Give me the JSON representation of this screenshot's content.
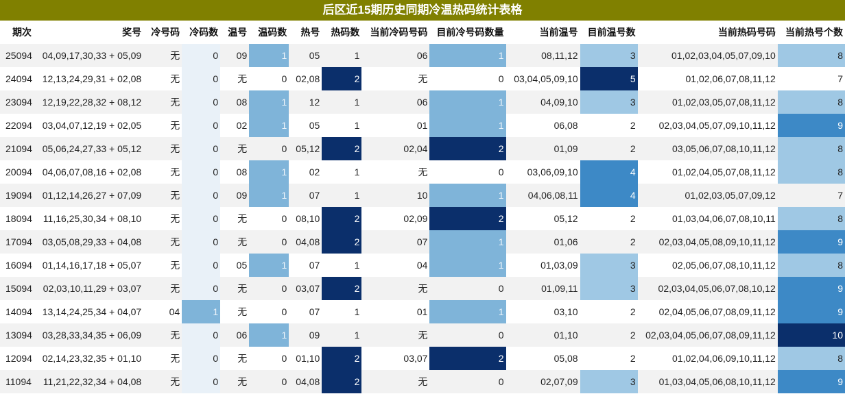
{
  "title": "后区近15期历史同期冷温热码统计表格",
  "headers": [
    "期次",
    "奖号",
    "冷号码",
    "冷码数",
    "温号",
    "温码数",
    "热号",
    "热码数",
    "当前冷码号码",
    "目前冷号码数量",
    "当前温号",
    "目前温号数",
    "当前热码号码",
    "当前热号个数"
  ],
  "rows": [
    {
      "issue": "25094",
      "draw": "04,09,17,30,33 + 05,09",
      "cold": "无",
      "cold_n": "0",
      "warm": "09",
      "warm_n": "1",
      "hot": "05",
      "hot_n": "1",
      "cur_cold": "06",
      "cur_cold_n": "1",
      "cur_warm": "08,11,12",
      "cur_warm_n": "3",
      "cur_hot": "01,02,03,04,05,07,09,10",
      "cur_hot_n": "8"
    },
    {
      "issue": "24094",
      "draw": "12,13,24,29,31 + 02,08",
      "cold": "无",
      "cold_n": "0",
      "warm": "无",
      "warm_n": "0",
      "hot": "02,08",
      "hot_n": "2",
      "cur_cold": "无",
      "cur_cold_n": "0",
      "cur_warm": "03,04,05,09,10",
      "cur_warm_n": "5",
      "cur_hot": "01,02,06,07,08,11,12",
      "cur_hot_n": "7"
    },
    {
      "issue": "23094",
      "draw": "12,19,22,28,32 + 08,12",
      "cold": "无",
      "cold_n": "0",
      "warm": "08",
      "warm_n": "1",
      "hot": "12",
      "hot_n": "1",
      "cur_cold": "06",
      "cur_cold_n": "1",
      "cur_warm": "04,09,10",
      "cur_warm_n": "3",
      "cur_hot": "01,02,03,05,07,08,11,12",
      "cur_hot_n": "8"
    },
    {
      "issue": "22094",
      "draw": "03,04,07,12,19 + 02,05",
      "cold": "无",
      "cold_n": "0",
      "warm": "02",
      "warm_n": "1",
      "hot": "05",
      "hot_n": "1",
      "cur_cold": "01",
      "cur_cold_n": "1",
      "cur_warm": "06,08",
      "cur_warm_n": "2",
      "cur_hot": "02,03,04,05,07,09,10,11,12",
      "cur_hot_n": "9"
    },
    {
      "issue": "21094",
      "draw": "05,06,24,27,33 + 05,12",
      "cold": "无",
      "cold_n": "0",
      "warm": "无",
      "warm_n": "0",
      "hot": "05,12",
      "hot_n": "2",
      "cur_cold": "02,04",
      "cur_cold_n": "2",
      "cur_warm": "01,09",
      "cur_warm_n": "2",
      "cur_hot": "03,05,06,07,08,10,11,12",
      "cur_hot_n": "8"
    },
    {
      "issue": "20094",
      "draw": "04,06,07,08,16 + 02,08",
      "cold": "无",
      "cold_n": "0",
      "warm": "08",
      "warm_n": "1",
      "hot": "02",
      "hot_n": "1",
      "cur_cold": "无",
      "cur_cold_n": "0",
      "cur_warm": "03,06,09,10",
      "cur_warm_n": "4",
      "cur_hot": "01,02,04,05,07,08,11,12",
      "cur_hot_n": "8"
    },
    {
      "issue": "19094",
      "draw": "01,12,14,26,27 + 07,09",
      "cold": "无",
      "cold_n": "0",
      "warm": "09",
      "warm_n": "1",
      "hot": "07",
      "hot_n": "1",
      "cur_cold": "10",
      "cur_cold_n": "1",
      "cur_warm": "04,06,08,11",
      "cur_warm_n": "4",
      "cur_hot": "01,02,03,05,07,09,12",
      "cur_hot_n": "7"
    },
    {
      "issue": "18094",
      "draw": "11,16,25,30,34 + 08,10",
      "cold": "无",
      "cold_n": "0",
      "warm": "无",
      "warm_n": "0",
      "hot": "08,10",
      "hot_n": "2",
      "cur_cold": "02,09",
      "cur_cold_n": "2",
      "cur_warm": "05,12",
      "cur_warm_n": "2",
      "cur_hot": "01,03,04,06,07,08,10,11",
      "cur_hot_n": "8"
    },
    {
      "issue": "17094",
      "draw": "03,05,08,29,33 + 04,08",
      "cold": "无",
      "cold_n": "0",
      "warm": "无",
      "warm_n": "0",
      "hot": "04,08",
      "hot_n": "2",
      "cur_cold": "07",
      "cur_cold_n": "1",
      "cur_warm": "01,06",
      "cur_warm_n": "2",
      "cur_hot": "02,03,04,05,08,09,10,11,12",
      "cur_hot_n": "9"
    },
    {
      "issue": "16094",
      "draw": "01,14,16,17,18 + 05,07",
      "cold": "无",
      "cold_n": "0",
      "warm": "05",
      "warm_n": "1",
      "hot": "07",
      "hot_n": "1",
      "cur_cold": "04",
      "cur_cold_n": "1",
      "cur_warm": "01,03,09",
      "cur_warm_n": "3",
      "cur_hot": "02,05,06,07,08,10,11,12",
      "cur_hot_n": "8"
    },
    {
      "issue": "15094",
      "draw": "02,03,10,11,29 + 03,07",
      "cold": "无",
      "cold_n": "0",
      "warm": "无",
      "warm_n": "0",
      "hot": "03,07",
      "hot_n": "2",
      "cur_cold": "无",
      "cur_cold_n": "0",
      "cur_warm": "01,09,11",
      "cur_warm_n": "3",
      "cur_hot": "02,03,04,05,06,07,08,10,12",
      "cur_hot_n": "9"
    },
    {
      "issue": "14094",
      "draw": "13,14,24,25,34 + 04,07",
      "cold": "04",
      "cold_n": "1",
      "warm": "无",
      "warm_n": "0",
      "hot": "07",
      "hot_n": "1",
      "cur_cold": "01",
      "cur_cold_n": "1",
      "cur_warm": "03,10",
      "cur_warm_n": "2",
      "cur_hot": "02,04,05,06,07,08,09,11,12",
      "cur_hot_n": "9"
    },
    {
      "issue": "13094",
      "draw": "03,28,33,34,35 + 06,09",
      "cold": "无",
      "cold_n": "0",
      "warm": "06",
      "warm_n": "1",
      "hot": "09",
      "hot_n": "1",
      "cur_cold": "无",
      "cur_cold_n": "0",
      "cur_warm": "01,10",
      "cur_warm_n": "2",
      "cur_hot": "02,03,04,05,06,07,08,09,11,12",
      "cur_hot_n": "10"
    },
    {
      "issue": "12094",
      "draw": "02,14,23,32,35 + 01,10",
      "cold": "无",
      "cold_n": "0",
      "warm": "无",
      "warm_n": "0",
      "hot": "01,10",
      "hot_n": "2",
      "cur_cold": "03,07",
      "cur_cold_n": "2",
      "cur_warm": "05,08",
      "cur_warm_n": "2",
      "cur_hot": "01,02,04,06,09,10,11,12",
      "cur_hot_n": "8"
    },
    {
      "issue": "11094",
      "draw": "11,21,22,32,34 + 04,08",
      "cold": "无",
      "cold_n": "0",
      "warm": "无",
      "warm_n": "0",
      "hot": "04,08",
      "hot_n": "2",
      "cur_cold": "无",
      "cur_cold_n": "0",
      "cur_warm": "02,07,09",
      "cur_warm_n": "3",
      "cur_hot": "01,03,04,05,06,08,10,11,12",
      "cur_hot_n": "9"
    }
  ],
  "colors": {
    "title_bg": "#808000",
    "level_light": "#7fb4d9",
    "level_dark": "#0b2f6b",
    "count_3": "#9fc8e4",
    "count_4": "#3d89c6",
    "count_5": "#0b2f6b"
  }
}
